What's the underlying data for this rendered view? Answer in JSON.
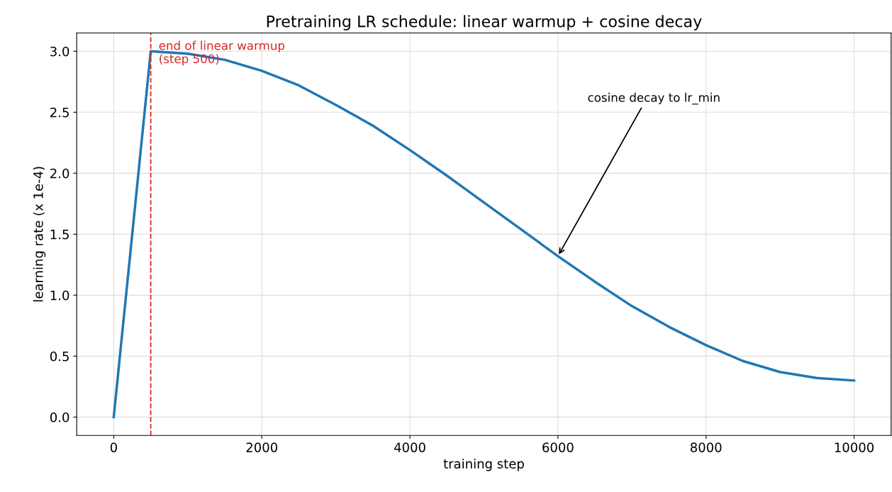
{
  "chart_data": {
    "type": "line",
    "title": "Pretraining LR schedule: linear warmup + cosine decay",
    "xlabel": "training step",
    "ylabel": "learning rate (x 1e-4)",
    "x": [
      0,
      500,
      1000,
      1500,
      2000,
      2500,
      3000,
      3500,
      4000,
      4500,
      5000,
      5500,
      6000,
      6500,
      7000,
      7500,
      8000,
      8500,
      9000,
      9500,
      10000
    ],
    "series": [
      {
        "color": "#1f77b4",
        "values": [
          0,
          3.0,
          2.98,
          2.93,
          2.84,
          2.72,
          2.56,
          2.39,
          2.19,
          1.98,
          1.76,
          1.54,
          1.32,
          1.11,
          0.91,
          0.74,
          0.59,
          0.46,
          0.37,
          0.32,
          0.3
        ]
      }
    ],
    "xlim": [
      -500,
      10500
    ],
    "xticks": [
      0,
      2000,
      4000,
      6000,
      8000,
      10000
    ],
    "ylim": [
      -0.15,
      3.15
    ],
    "yticks": [
      {
        "value": 0,
        "label": "0.0"
      },
      {
        "value": 0.5,
        "label": "0.5"
      },
      {
        "value": 1,
        "label": "1.0"
      },
      {
        "value": 1.5,
        "label": "1.5"
      },
      {
        "value": 2,
        "label": "2.0"
      },
      {
        "value": 2.5,
        "label": "2.5"
      },
      {
        "value": 3,
        "label": "3.0"
      }
    ],
    "ref_lines": [
      {
        "axis": "x",
        "value": 500,
        "label": "end of linear warmup\n(step 500)",
        "color": "#d62728",
        "line_style": "dashed"
      }
    ],
    "annotations": [
      {
        "text": "cosine decay to lr_min",
        "x": 6000,
        "y": 1.32
      }
    ],
    "grid": true,
    "marker": "none",
    "line_style": "solid"
  }
}
